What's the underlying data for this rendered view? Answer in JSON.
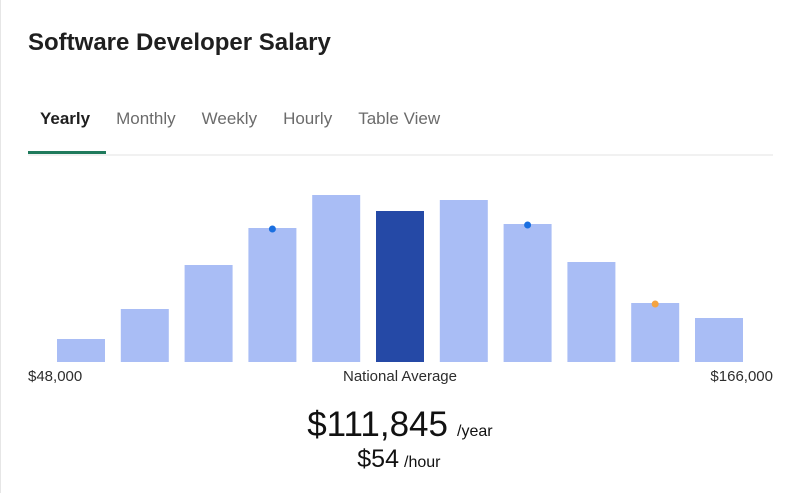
{
  "header": {
    "title": "Software Developer Salary"
  },
  "tabs": [
    {
      "label": "Yearly",
      "active": true
    },
    {
      "label": "Monthly"
    },
    {
      "label": "Weekly"
    },
    {
      "label": "Hourly"
    },
    {
      "label": "Table View"
    }
  ],
  "chart_data": {
    "type": "bar",
    "values": [
      23,
      53,
      97,
      134,
      167,
      151,
      162,
      138,
      100,
      59,
      44
    ],
    "colors": [
      "#a9bdf5",
      "#a9bdf5",
      "#a9bdf5",
      "#a9bdf5",
      "#a9bdf5",
      "#2549a6",
      "#a9bdf5",
      "#a9bdf5",
      "#a9bdf5",
      "#a9bdf5",
      "#a9bdf5"
    ],
    "markers": [
      {
        "bar": 3,
        "color": "#1a6fe0"
      },
      {
        "bar": 7,
        "color": "#1a6fe0"
      },
      {
        "bar": 9,
        "color": "#f4a340"
      }
    ],
    "min_label": "$48,000",
    "center_label": "National Average",
    "max_label": "$166,000"
  },
  "summary": {
    "salary": "$111,845",
    "salary_unit": "/year",
    "hourly": "$54",
    "hourly_unit": "/hour"
  }
}
